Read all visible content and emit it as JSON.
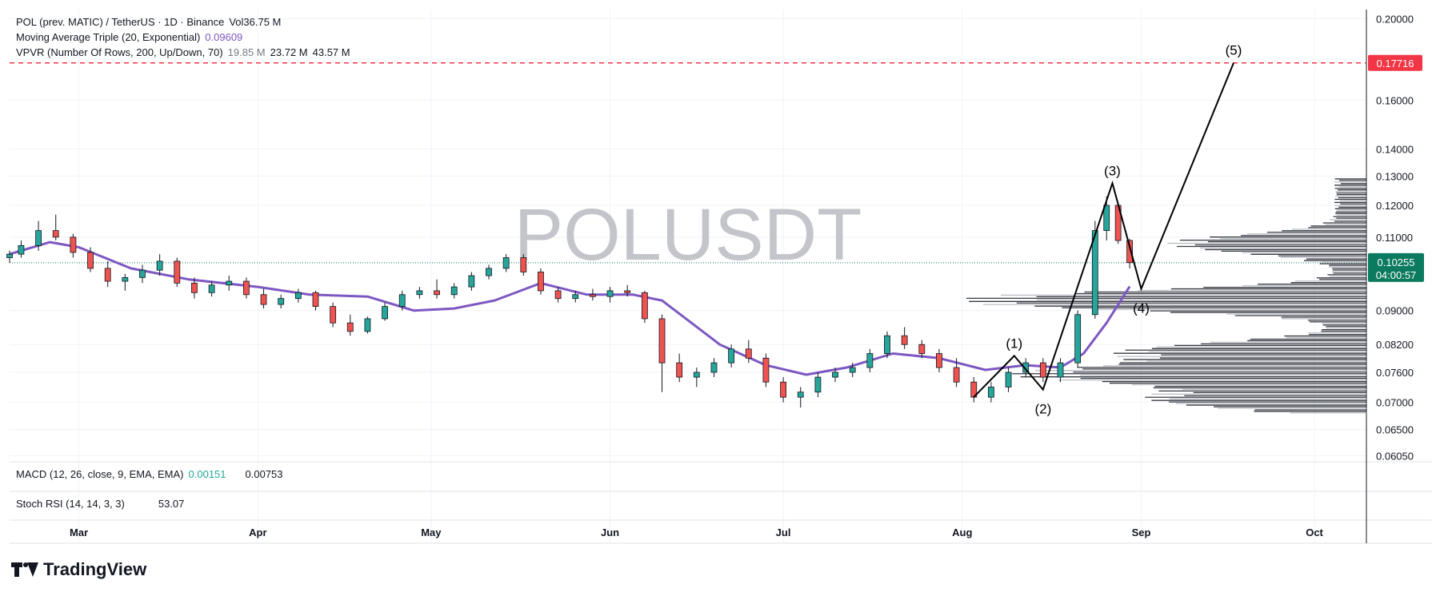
{
  "legend": {
    "symbol": "POL (prev. MATIC) / TetherUS · 1D · Binance",
    "vol_label": "Vol",
    "vol_value": "36.75 M",
    "ma_label": "Moving Average Triple (20, Exponential)",
    "ma_value": "0.09609",
    "vpvr_label": "VPVR (Number Of Rows, 200, Up/Down, 70)",
    "vpvr_v1": "19.85 M",
    "vpvr_v2": "23.72 M",
    "vpvr_v3": "43.57 M"
  },
  "watermark": "POLUSDT",
  "panes": {
    "macd_label": "MACD (12, 26, close, 9, EMA, EMA)",
    "macd_v1": "0.00151",
    "macd_v2": "0.00753",
    "stoch_label": "Stoch RSI (14, 14, 3, 3)",
    "stoch_v": "53.07"
  },
  "brand": "TradingView",
  "colors": {
    "up": "#26a69a",
    "down": "#ef5350",
    "ma": "#7e57c2",
    "resistance": "#f23645",
    "price_tag": "#0b7a5e",
    "wave": "#000000",
    "grid": "#f0f3fa",
    "text": "#131722"
  },
  "chart_data": {
    "type": "candlestick",
    "title": "POL (prev. MATIC) / TetherUS · 1D · Binance",
    "x_range": [
      "2024-02-18",
      "2024-10-10"
    ],
    "y_range": [
      0.0595,
      0.205
    ],
    "y_scale": "log",
    "y_ticks": [
      "0.20000",
      "0.16000",
      "0.14000",
      "0.13000",
      "0.12000",
      "0.11000",
      "0.09000",
      "0.08200",
      "0.07600",
      "0.07000",
      "0.06500",
      "0.06050"
    ],
    "x_ticks": [
      {
        "label": "Mar",
        "date": "2024-03-01"
      },
      {
        "label": "Apr",
        "date": "2024-04-01"
      },
      {
        "label": "May",
        "date": "2024-05-01"
      },
      {
        "label": "Jun",
        "date": "2024-06-01"
      },
      {
        "label": "Jul",
        "date": "2024-07-01"
      },
      {
        "label": "Aug",
        "date": "2024-08-01"
      },
      {
        "label": "Sep",
        "date": "2024-09-01"
      },
      {
        "label": "Oct",
        "date": "2024-10-01"
      }
    ],
    "series": [
      {
        "name": "Moving Average Triple (20, Exponential)",
        "last": 0.09609,
        "points": [
          [
            "2024-02-18",
            0.105
          ],
          [
            "2024-02-25",
            0.1085
          ],
          [
            "2024-03-01",
            0.107
          ],
          [
            "2024-03-10",
            0.101
          ],
          [
            "2024-03-20",
            0.098
          ],
          [
            "2024-04-01",
            0.096
          ],
          [
            "2024-04-10",
            0.094
          ],
          [
            "2024-04-20",
            0.0935
          ],
          [
            "2024-04-28",
            0.09
          ],
          [
            "2024-05-05",
            0.0905
          ],
          [
            "2024-05-12",
            0.0925
          ],
          [
            "2024-05-20",
            0.097
          ],
          [
            "2024-05-28",
            0.094
          ],
          [
            "2024-06-05",
            0.094
          ],
          [
            "2024-06-10",
            0.0925
          ],
          [
            "2024-06-20",
            0.082
          ],
          [
            "2024-06-28",
            0.0775
          ],
          [
            "2024-07-05",
            0.0755
          ],
          [
            "2024-07-12",
            0.077
          ],
          [
            "2024-07-20",
            0.08
          ],
          [
            "2024-07-28",
            0.079
          ],
          [
            "2024-08-05",
            0.0765
          ],
          [
            "2024-08-12",
            0.0775
          ],
          [
            "2024-08-18",
            0.077
          ],
          [
            "2024-08-22",
            0.08
          ],
          [
            "2024-08-26",
            0.087
          ],
          [
            "2024-08-30",
            0.0961
          ]
        ]
      },
      {
        "name": "VPVR (Number Of Rows, 200, Up/Down, 70)",
        "up_volume": "19.85 M",
        "down_volume": "23.72 M",
        "total": "43.57 M"
      }
    ],
    "candles": [
      [
        "2024-02-18",
        0.104,
        0.106,
        0.1025,
        0.105
      ],
      [
        "2024-02-20",
        0.105,
        0.109,
        0.104,
        0.1075
      ],
      [
        "2024-02-23",
        0.1075,
        0.115,
        0.106,
        0.112
      ],
      [
        "2024-02-26",
        0.112,
        0.117,
        0.109,
        0.11
      ],
      [
        "2024-02-29",
        0.11,
        0.111,
        0.104,
        0.1055
      ],
      [
        "2024-03-03",
        0.1055,
        0.107,
        0.1,
        0.101
      ],
      [
        "2024-03-06",
        0.101,
        0.103,
        0.096,
        0.0975
      ],
      [
        "2024-03-09",
        0.0975,
        0.0995,
        0.095,
        0.0985
      ],
      [
        "2024-03-12",
        0.0985,
        0.102,
        0.097,
        0.1005
      ],
      [
        "2024-03-15",
        0.1005,
        0.105,
        0.099,
        0.103
      ],
      [
        "2024-03-18",
        0.103,
        0.104,
        0.096,
        0.097
      ],
      [
        "2024-03-21",
        0.097,
        0.0985,
        0.093,
        0.0945
      ],
      [
        "2024-03-24",
        0.0945,
        0.0975,
        0.0935,
        0.0965
      ],
      [
        "2024-03-27",
        0.0965,
        0.099,
        0.095,
        0.0975
      ],
      [
        "2024-03-30",
        0.0975,
        0.0985,
        0.093,
        0.094
      ],
      [
        "2024-04-02",
        0.094,
        0.0955,
        0.0905,
        0.0915
      ],
      [
        "2024-04-05",
        0.0915,
        0.094,
        0.0905,
        0.093
      ],
      [
        "2024-04-08",
        0.093,
        0.0955,
        0.092,
        0.0945
      ],
      [
        "2024-04-11",
        0.0945,
        0.095,
        0.09,
        0.091
      ],
      [
        "2024-04-14",
        0.091,
        0.092,
        0.086,
        0.087
      ],
      [
        "2024-04-17",
        0.087,
        0.089,
        0.084,
        0.085
      ],
      [
        "2024-04-20",
        0.085,
        0.0885,
        0.0845,
        0.088
      ],
      [
        "2024-04-23",
        0.088,
        0.092,
        0.0875,
        0.091
      ],
      [
        "2024-04-26",
        0.091,
        0.095,
        0.09,
        0.094
      ],
      [
        "2024-04-29",
        0.094,
        0.096,
        0.093,
        0.095
      ],
      [
        "2024-05-02",
        0.095,
        0.098,
        0.093,
        0.094
      ],
      [
        "2024-05-05",
        0.094,
        0.097,
        0.093,
        0.096
      ],
      [
        "2024-05-08",
        0.096,
        0.1,
        0.095,
        0.099
      ],
      [
        "2024-05-11",
        0.099,
        0.102,
        0.098,
        0.101
      ],
      [
        "2024-05-14",
        0.101,
        0.105,
        0.1,
        0.104
      ],
      [
        "2024-05-17",
        0.104,
        0.105,
        0.099,
        0.1
      ],
      [
        "2024-05-20",
        0.1,
        0.101,
        0.094,
        0.095
      ],
      [
        "2024-05-23",
        0.095,
        0.096,
        0.092,
        0.093
      ],
      [
        "2024-05-26",
        0.093,
        0.095,
        0.092,
        0.094
      ],
      [
        "2024-05-29",
        0.094,
        0.0955,
        0.0925,
        0.0935
      ],
      [
        "2024-06-01",
        0.0935,
        0.096,
        0.092,
        0.095
      ],
      [
        "2024-06-04",
        0.095,
        0.0965,
        0.0935,
        0.0945
      ],
      [
        "2024-06-07",
        0.0945,
        0.095,
        0.087,
        0.088
      ],
      [
        "2024-06-10",
        0.088,
        0.089,
        0.072,
        0.078
      ],
      [
        "2024-06-13",
        0.078,
        0.08,
        0.074,
        0.075
      ],
      [
        "2024-06-16",
        0.075,
        0.077,
        0.073,
        0.076
      ],
      [
        "2024-06-19",
        0.076,
        0.079,
        0.075,
        0.078
      ],
      [
        "2024-06-22",
        0.078,
        0.082,
        0.077,
        0.081
      ],
      [
        "2024-06-25",
        0.081,
        0.083,
        0.078,
        0.079
      ],
      [
        "2024-06-28",
        0.079,
        0.08,
        0.073,
        0.074
      ],
      [
        "2024-07-01",
        0.074,
        0.075,
        0.07,
        0.071
      ],
      [
        "2024-07-04",
        0.071,
        0.073,
        0.069,
        0.072
      ],
      [
        "2024-07-07",
        0.072,
        0.076,
        0.071,
        0.075
      ],
      [
        "2024-07-10",
        0.075,
        0.077,
        0.074,
        0.076
      ],
      [
        "2024-07-13",
        0.076,
        0.078,
        0.075,
        0.077
      ],
      [
        "2024-07-16",
        0.077,
        0.081,
        0.076,
        0.08
      ],
      [
        "2024-07-19",
        0.08,
        0.085,
        0.079,
        0.084
      ],
      [
        "2024-07-22",
        0.084,
        0.086,
        0.081,
        0.082
      ],
      [
        "2024-07-25",
        0.082,
        0.083,
        0.079,
        0.08
      ],
      [
        "2024-07-28",
        0.08,
        0.081,
        0.076,
        0.077
      ],
      [
        "2024-07-31",
        0.077,
        0.079,
        0.073,
        0.074
      ],
      [
        "2024-08-03",
        0.074,
        0.075,
        0.07,
        0.071
      ],
      [
        "2024-08-06",
        0.071,
        0.074,
        0.07,
        0.073
      ],
      [
        "2024-08-09",
        0.073,
        0.077,
        0.072,
        0.076
      ],
      [
        "2024-08-12",
        0.076,
        0.079,
        0.075,
        0.078
      ],
      [
        "2024-08-15",
        0.078,
        0.079,
        0.074,
        0.075
      ],
      [
        "2024-08-18",
        0.075,
        0.079,
        0.074,
        0.078
      ],
      [
        "2024-08-21",
        0.078,
        0.09,
        0.077,
        0.089
      ],
      [
        "2024-08-24",
        0.089,
        0.115,
        0.088,
        0.112
      ],
      [
        "2024-08-26",
        0.112,
        0.123,
        0.109,
        0.12
      ],
      [
        "2024-08-28",
        0.12,
        0.121,
        0.108,
        0.109
      ],
      [
        "2024-08-30",
        0.109,
        0.1095,
        0.101,
        0.1026
      ]
    ],
    "current_price": "0.10255",
    "countdown": "04:00:57",
    "resistance": "0.17716",
    "elliott_labels": [
      {
        "label": "(1)",
        "date": "2024-08-10",
        "price": 0.0795
      },
      {
        "label": "(2)",
        "date": "2024-08-15",
        "price": 0.0725
      },
      {
        "label": "(3)",
        "date": "2024-08-27",
        "price": 0.1275
      },
      {
        "label": "(4)",
        "date": "2024-09-01",
        "price": 0.0955
      },
      {
        "label": "(5)",
        "date": "2024-09-17",
        "price": 0.1772
      }
    ],
    "elliott_path": [
      [
        "2024-08-03",
        0.071
      ],
      [
        "2024-08-10",
        0.0795
      ],
      [
        "2024-08-15",
        0.0725
      ],
      [
        "2024-08-27",
        0.1275
      ],
      [
        "2024-09-01",
        0.0955
      ],
      [
        "2024-09-17",
        0.1772
      ]
    ]
  }
}
